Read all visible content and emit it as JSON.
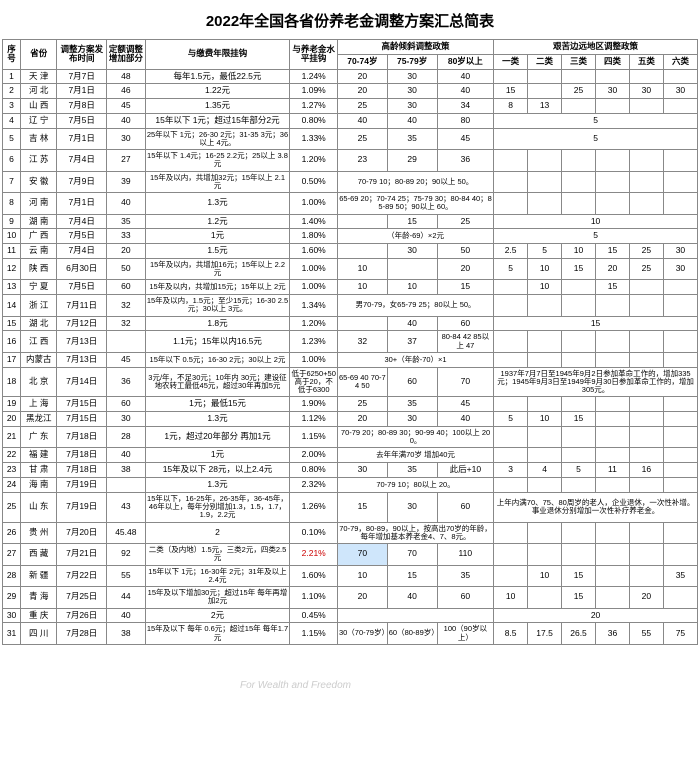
{
  "title": "2022年全国各省份养老金调整方案汇总简表",
  "headers": {
    "seq": "序号",
    "province": "省份",
    "date": "调整方案发布时间",
    "fixed": "定额调整增加部分",
    "payyears": "与缴费年限挂钩",
    "level": "与养老金水平挂钩",
    "agegroup": "高龄倾斜调整政策",
    "age1": "70-74岁",
    "age2": "75-79岁",
    "age3": "80岁以上",
    "remotegroup": "艰苦边远地区调整政策",
    "r1": "一类",
    "r2": "二类",
    "r3": "三类",
    "r4": "四类",
    "r5": "五类",
    "r6": "六类"
  },
  "rows": [
    {
      "n": "1",
      "p": "天 津",
      "d": "7月7日",
      "f": "48",
      "pay": "每年1.5元，最低22.5元",
      "lv": "1.24%",
      "a1": "20",
      "a2": "30",
      "a3": "40",
      "rem": [
        "",
        "",
        "",
        "",
        "",
        ""
      ]
    },
    {
      "n": "2",
      "p": "河 北",
      "d": "7月1日",
      "f": "46",
      "pay": "1.22元",
      "lv": "1.09%",
      "a1": "20",
      "a2": "30",
      "a3": "40",
      "rem": [
        "15",
        "",
        "25",
        "30",
        "30",
        "30"
      ]
    },
    {
      "n": "3",
      "p": "山 西",
      "d": "7月8日",
      "f": "45",
      "pay": "1.35元",
      "lv": "1.27%",
      "a1": "25",
      "a2": "30",
      "a3": "34",
      "rem": [
        "8",
        "13",
        "",
        "",
        "",
        ""
      ]
    },
    {
      "n": "4",
      "p": "辽 宁",
      "d": "7月5日",
      "f": "40",
      "pay": "15年以下 1元；超过15年部分2元",
      "lv": "0.80%",
      "a1": "40",
      "a2": "40",
      "a3": "80",
      "rem": [
        "",
        "",
        "5",
        "",
        "",
        ""
      ]
    },
    {
      "n": "5",
      "p": "吉 林",
      "d": "7月1日",
      "f": "30",
      "pay": "25年以下 1元；26-30 2元；31-35 3元；36以上 4元。",
      "lv": "1.33%",
      "a1": "25",
      "a2": "35",
      "a3": "45",
      "rem": [
        "",
        "",
        "5",
        "",
        "",
        ""
      ]
    },
    {
      "n": "6",
      "p": "江 苏",
      "d": "7月4日",
      "f": "27",
      "pay": "15年以下 1.4元；16-25 2.2元；25以上 3.8元",
      "lv": "1.20%",
      "a1": "23",
      "a2": "29",
      "a3": "36",
      "rem": [
        "",
        "",
        "",
        "",
        "",
        ""
      ]
    },
    {
      "n": "7",
      "p": "安 徽",
      "d": "7月9日",
      "f": "39",
      "pay": "15年及以内，共增加32元；15年以上 2.1元",
      "lv": "0.50%",
      "a": "70-79 10；80-89 20；90以上 50。",
      "rem": [
        "",
        "",
        "",
        "",
        "",
        ""
      ]
    },
    {
      "n": "8",
      "p": "河 南",
      "d": "7月1日",
      "f": "40",
      "pay": "1.3元",
      "lv": "1.00%",
      "a": "65-69 20；70-74 25；75-79 30；80-84 40；85-89 50；90以上 60。",
      "rem": [
        "",
        "",
        "",
        "",
        "",
        ""
      ]
    },
    {
      "n": "9",
      "p": "湖 南",
      "d": "7月4日",
      "f": "35",
      "pay": "1.2元",
      "lv": "1.40%",
      "a1": "",
      "a2": "15",
      "a3": "25",
      "rem": [
        "",
        "",
        "10",
        "",
        "",
        ""
      ]
    },
    {
      "n": "10",
      "p": "广 西",
      "d": "7月5日",
      "f": "33",
      "pay": "1元",
      "lv": "1.80%",
      "a": "（年龄-69）×2元",
      "rem": [
        "",
        "",
        "5",
        "",
        "",
        ""
      ]
    },
    {
      "n": "11",
      "p": "云 南",
      "d": "7月4日",
      "f": "20",
      "pay": "1.5元",
      "lv": "1.60%",
      "a1": "",
      "a2": "30",
      "a3": "50",
      "rem": [
        "2.5",
        "5",
        "10",
        "15",
        "25",
        "30"
      ]
    },
    {
      "n": "12",
      "p": "陕 西",
      "d": "6月30日",
      "f": "50",
      "pay": "15年及以内，共增加16元；15年以上 2.2元",
      "lv": "1.00%",
      "a1": "10",
      "a2": "",
      "a3": "20",
      "rem": [
        "5",
        "10",
        "15",
        "20",
        "25",
        "30"
      ]
    },
    {
      "n": "13",
      "p": "宁 夏",
      "d": "7月5日",
      "f": "60",
      "pay": "15年及以内，共增加15元；15年以上 2元",
      "lv": "1.00%",
      "a1": "10",
      "a2": "10",
      "a3": "15",
      "rem": [
        "",
        "10",
        "",
        "15",
        "",
        ""
      ]
    },
    {
      "n": "14",
      "p": "浙 江",
      "d": "7月11日",
      "f": "32",
      "pay": "15年及以内，1.5元；至少15元；16-30 2.5元；30以上 3元。",
      "lv": "1.34%",
      "a": "男70-79，女65-79 25；80以上 50。",
      "rem": [
        "",
        "",
        "",
        "",
        "",
        ""
      ]
    },
    {
      "n": "15",
      "p": "湖 北",
      "d": "7月12日",
      "f": "32",
      "pay": "1.8元",
      "lv": "1.20%",
      "a1": "",
      "a2": "40",
      "a3": "60",
      "rem": [
        "",
        "",
        "15",
        "",
        "",
        ""
      ]
    },
    {
      "n": "16",
      "p": "江 西",
      "d": "7月13日",
      "f": "",
      "pay": "1.1元；15年以内16.5元",
      "lv": "1.23%",
      "a1": "32",
      "a2": "37",
      "a3": "80-84 42 85以上 47",
      "rem": [
        "",
        "",
        "",
        "",
        "",
        ""
      ]
    },
    {
      "n": "17",
      "p": "内蒙古",
      "d": "7月13日",
      "f": "45",
      "pay": "15年以下 0.5元；16-30 2元；30以上 2元",
      "lv": "1.00%",
      "a": "30+（年龄-70）×1",
      "rem": [
        "",
        "",
        "",
        "",
        "",
        ""
      ]
    },
    {
      "n": "18",
      "p": "北 京",
      "d": "7月14日",
      "f": "36",
      "pay": "3元/年，不足30元；10年内 30元；建设征地农转工最低45元，超过30年再加5元",
      "lv": "低于6250+50 高于20，不低于6300",
      "a1": "65-69 40 70-74 50",
      "a2": "60",
      "a3": "70",
      "remtext": "1937年7月7日至1945年9月2日参加革命工作的，增加335元；1945年9月3日至1949年9月30日参加革命工作的，增加305元。"
    },
    {
      "n": "19",
      "p": "上 海",
      "d": "7月15日",
      "f": "60",
      "pay": "1元；最低15元",
      "lv": "1.90%",
      "a1": "25",
      "a2": "35",
      "a3": "45",
      "rem": [
        "",
        "",
        "",
        "",
        "",
        ""
      ]
    },
    {
      "n": "20",
      "p": "黑龙江",
      "d": "7月15日",
      "f": "30",
      "pay": "1.3元",
      "lv": "1.12%",
      "a1": "20",
      "a2": "30",
      "a3": "40",
      "rem": [
        "5",
        "10",
        "15",
        "",
        "",
        ""
      ]
    },
    {
      "n": "21",
      "p": "广 东",
      "d": "7月18日",
      "f": "28",
      "pay": "1元，超过20年部分 再加1元",
      "lv": "1.15%",
      "a": "70-79 20；80-89 30；90-99 40；100以上 200。",
      "rem": [
        "",
        "",
        "",
        "",
        "",
        ""
      ]
    },
    {
      "n": "22",
      "p": "福 建",
      "d": "7月18日",
      "f": "40",
      "pay": "1元",
      "lv": "2.00%",
      "a": "去年年满70岁 增加40元",
      "rem": [
        "",
        "",
        "",
        "",
        "",
        ""
      ]
    },
    {
      "n": "23",
      "p": "甘 肃",
      "d": "7月18日",
      "f": "38",
      "pay": "15年及以下 28元，以上2.4元",
      "lv": "0.80%",
      "a1": "30",
      "a2": "35",
      "a3": "此后+10",
      "rem": [
        "3",
        "4",
        "5",
        "11",
        "16",
        ""
      ]
    },
    {
      "n": "24",
      "p": "海 南",
      "d": "7月19日",
      "f": "",
      "pay": "1.3元",
      "lv": "2.32%",
      "a": "70-79 10；80以上 20。",
      "rem": [
        "",
        "",
        "",
        "",
        "",
        ""
      ]
    },
    {
      "n": "25",
      "p": "山 东",
      "d": "7月19日",
      "f": "43",
      "pay": "15年以下，16-25年，26-35年，36-45年，46年以上，每年分别增加1.3，1.5，1.7，1.9，2.2元",
      "lv": "1.26%",
      "a1": "15",
      "a2": "30",
      "a3": "60",
      "remtext": "上年内满70、75、80周岁的老人，企业退休，一次性补增。事业退休分别增加一次性补疗养老金。"
    },
    {
      "n": "26",
      "p": "贵 州",
      "d": "7月20日",
      "f": "45.48",
      "pay": "2",
      "lv": "0.10%",
      "a": "70-79，80-89，90以上，按高出70岁的年龄，每年增加基本养老金4、7、8元。",
      "rem": [
        "",
        "",
        "",
        "",
        "",
        ""
      ]
    },
    {
      "n": "27",
      "p": "西 藏",
      "d": "7月21日",
      "f": "92",
      "pay": "二类（及内地）1.5元，三类2元，四类2.5元",
      "lv": "2.21%",
      "a1": "70",
      "a1hl": true,
      "a2": "70",
      "a3": "110",
      "rem": [
        "",
        "",
        "",
        "",
        "",
        ""
      ],
      "lvred": true
    },
    {
      "n": "28",
      "p": "新 疆",
      "d": "7月22日",
      "f": "55",
      "pay": "15年以下 1元；16-30年 2元；31年及以上 2.4元",
      "lv": "1.60%",
      "a1": "10",
      "a2": "15",
      "a3": "35",
      "rem": [
        "",
        "10",
        "15",
        "",
        "",
        "35"
      ]
    },
    {
      "n": "29",
      "p": "青 海",
      "d": "7月25日",
      "f": "44",
      "pay": "15年及以下增加30元；超过15年 每年再增加2元",
      "lv": "1.10%",
      "a1": "20",
      "a2": "40",
      "a3": "60",
      "rem": [
        "10",
        "",
        "15",
        "",
        "20",
        ""
      ]
    },
    {
      "n": "30",
      "p": "重 庆",
      "d": "7月26日",
      "f": "40",
      "pay": "2元",
      "lv": "0.45%",
      "a": "",
      "rem": [
        "",
        "",
        "20",
        "",
        "",
        ""
      ]
    },
    {
      "n": "31",
      "p": "四 川",
      "d": "7月28日",
      "f": "38",
      "pay": "15年及以下 每年 0.6元；超过15年 每年1.7元",
      "lv": "1.15%",
      "a1": "30（70-79岁）",
      "a2": "60（80-89岁）",
      "a3": "100（90岁以上）",
      "rem": [
        "8.5",
        "17.5",
        "26.5",
        "36",
        "55",
        "75"
      ]
    }
  ]
}
